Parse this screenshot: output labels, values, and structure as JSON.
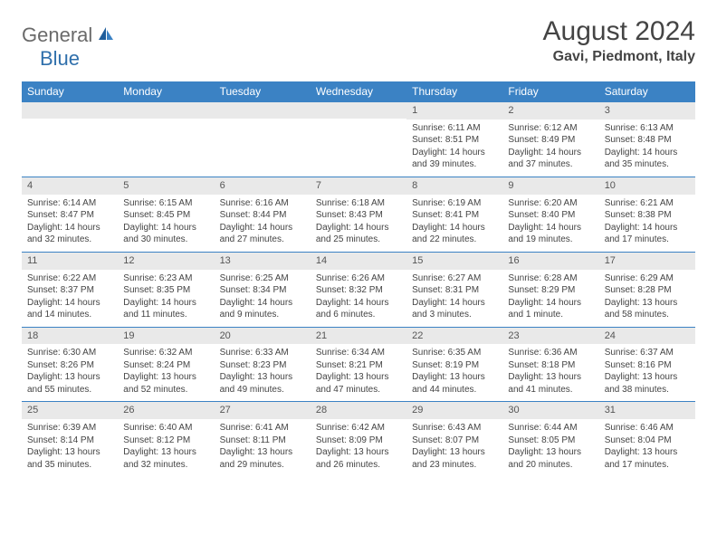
{
  "logo": {
    "text1": "General",
    "text2": "Blue"
  },
  "title": "August 2024",
  "location": "Gavi, Piedmont, Italy",
  "colors": {
    "header_bar": "#3b82c4",
    "header_text": "#ffffff",
    "daynum_bg": "#e9e9e9",
    "cell_border": "#3b82c4",
    "body_text": "#444444",
    "logo_gray": "#6a6a6a",
    "logo_blue": "#2f6fab"
  },
  "days_of_week": [
    "Sunday",
    "Monday",
    "Tuesday",
    "Wednesday",
    "Thursday",
    "Friday",
    "Saturday"
  ],
  "weeks": [
    [
      {
        "blank": true
      },
      {
        "blank": true
      },
      {
        "blank": true
      },
      {
        "blank": true
      },
      {
        "n": "1",
        "sunrise": "6:11 AM",
        "sunset": "8:51 PM",
        "dl1": "Daylight: 14 hours",
        "dl2": "and 39 minutes."
      },
      {
        "n": "2",
        "sunrise": "6:12 AM",
        "sunset": "8:49 PM",
        "dl1": "Daylight: 14 hours",
        "dl2": "and 37 minutes."
      },
      {
        "n": "3",
        "sunrise": "6:13 AM",
        "sunset": "8:48 PM",
        "dl1": "Daylight: 14 hours",
        "dl2": "and 35 minutes."
      }
    ],
    [
      {
        "n": "4",
        "sunrise": "6:14 AM",
        "sunset": "8:47 PM",
        "dl1": "Daylight: 14 hours",
        "dl2": "and 32 minutes."
      },
      {
        "n": "5",
        "sunrise": "6:15 AM",
        "sunset": "8:45 PM",
        "dl1": "Daylight: 14 hours",
        "dl2": "and 30 minutes."
      },
      {
        "n": "6",
        "sunrise": "6:16 AM",
        "sunset": "8:44 PM",
        "dl1": "Daylight: 14 hours",
        "dl2": "and 27 minutes."
      },
      {
        "n": "7",
        "sunrise": "6:18 AM",
        "sunset": "8:43 PM",
        "dl1": "Daylight: 14 hours",
        "dl2": "and 25 minutes."
      },
      {
        "n": "8",
        "sunrise": "6:19 AM",
        "sunset": "8:41 PM",
        "dl1": "Daylight: 14 hours",
        "dl2": "and 22 minutes."
      },
      {
        "n": "9",
        "sunrise": "6:20 AM",
        "sunset": "8:40 PM",
        "dl1": "Daylight: 14 hours",
        "dl2": "and 19 minutes."
      },
      {
        "n": "10",
        "sunrise": "6:21 AM",
        "sunset": "8:38 PM",
        "dl1": "Daylight: 14 hours",
        "dl2": "and 17 minutes."
      }
    ],
    [
      {
        "n": "11",
        "sunrise": "6:22 AM",
        "sunset": "8:37 PM",
        "dl1": "Daylight: 14 hours",
        "dl2": "and 14 minutes."
      },
      {
        "n": "12",
        "sunrise": "6:23 AM",
        "sunset": "8:35 PM",
        "dl1": "Daylight: 14 hours",
        "dl2": "and 11 minutes."
      },
      {
        "n": "13",
        "sunrise": "6:25 AM",
        "sunset": "8:34 PM",
        "dl1": "Daylight: 14 hours",
        "dl2": "and 9 minutes."
      },
      {
        "n": "14",
        "sunrise": "6:26 AM",
        "sunset": "8:32 PM",
        "dl1": "Daylight: 14 hours",
        "dl2": "and 6 minutes."
      },
      {
        "n": "15",
        "sunrise": "6:27 AM",
        "sunset": "8:31 PM",
        "dl1": "Daylight: 14 hours",
        "dl2": "and 3 minutes."
      },
      {
        "n": "16",
        "sunrise": "6:28 AM",
        "sunset": "8:29 PM",
        "dl1": "Daylight: 14 hours",
        "dl2": "and 1 minute."
      },
      {
        "n": "17",
        "sunrise": "6:29 AM",
        "sunset": "8:28 PM",
        "dl1": "Daylight: 13 hours",
        "dl2": "and 58 minutes."
      }
    ],
    [
      {
        "n": "18",
        "sunrise": "6:30 AM",
        "sunset": "8:26 PM",
        "dl1": "Daylight: 13 hours",
        "dl2": "and 55 minutes."
      },
      {
        "n": "19",
        "sunrise": "6:32 AM",
        "sunset": "8:24 PM",
        "dl1": "Daylight: 13 hours",
        "dl2": "and 52 minutes."
      },
      {
        "n": "20",
        "sunrise": "6:33 AM",
        "sunset": "8:23 PM",
        "dl1": "Daylight: 13 hours",
        "dl2": "and 49 minutes."
      },
      {
        "n": "21",
        "sunrise": "6:34 AM",
        "sunset": "8:21 PM",
        "dl1": "Daylight: 13 hours",
        "dl2": "and 47 minutes."
      },
      {
        "n": "22",
        "sunrise": "6:35 AM",
        "sunset": "8:19 PM",
        "dl1": "Daylight: 13 hours",
        "dl2": "and 44 minutes."
      },
      {
        "n": "23",
        "sunrise": "6:36 AM",
        "sunset": "8:18 PM",
        "dl1": "Daylight: 13 hours",
        "dl2": "and 41 minutes."
      },
      {
        "n": "24",
        "sunrise": "6:37 AM",
        "sunset": "8:16 PM",
        "dl1": "Daylight: 13 hours",
        "dl2": "and 38 minutes."
      }
    ],
    [
      {
        "n": "25",
        "sunrise": "6:39 AM",
        "sunset": "8:14 PM",
        "dl1": "Daylight: 13 hours",
        "dl2": "and 35 minutes."
      },
      {
        "n": "26",
        "sunrise": "6:40 AM",
        "sunset": "8:12 PM",
        "dl1": "Daylight: 13 hours",
        "dl2": "and 32 minutes."
      },
      {
        "n": "27",
        "sunrise": "6:41 AM",
        "sunset": "8:11 PM",
        "dl1": "Daylight: 13 hours",
        "dl2": "and 29 minutes."
      },
      {
        "n": "28",
        "sunrise": "6:42 AM",
        "sunset": "8:09 PM",
        "dl1": "Daylight: 13 hours",
        "dl2": "and 26 minutes."
      },
      {
        "n": "29",
        "sunrise": "6:43 AM",
        "sunset": "8:07 PM",
        "dl1": "Daylight: 13 hours",
        "dl2": "and 23 minutes."
      },
      {
        "n": "30",
        "sunrise": "6:44 AM",
        "sunset": "8:05 PM",
        "dl1": "Daylight: 13 hours",
        "dl2": "and 20 minutes."
      },
      {
        "n": "31",
        "sunrise": "6:46 AM",
        "sunset": "8:04 PM",
        "dl1": "Daylight: 13 hours",
        "dl2": "and 17 minutes."
      }
    ]
  ]
}
